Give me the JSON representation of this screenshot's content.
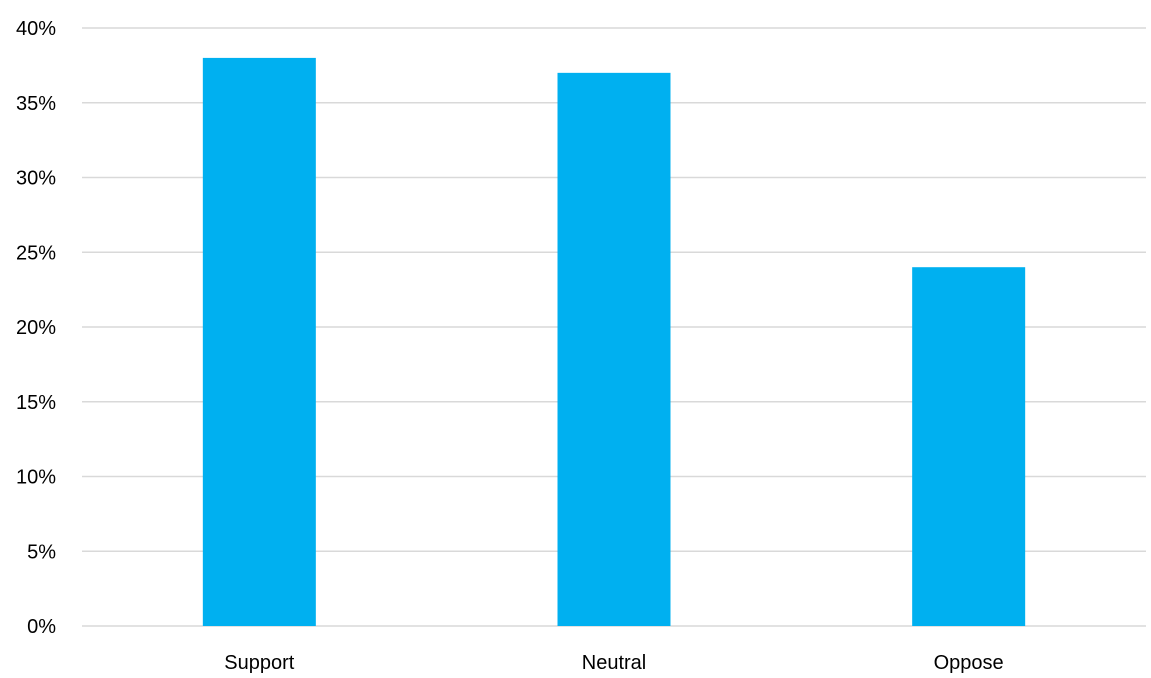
{
  "chart_data": {
    "type": "bar",
    "categories": [
      "Support",
      "Neutral",
      "Oppose"
    ],
    "values": [
      38,
      37,
      24
    ],
    "title": "",
    "xlabel": "",
    "ylabel": "",
    "ylim": [
      0,
      40
    ],
    "yticks": [
      0,
      5,
      10,
      15,
      20,
      25,
      30,
      35,
      40
    ],
    "ytick_format": "%",
    "grid": true,
    "legend": "none",
    "bar_color": "#00b0f0",
    "grid_color": "#d9d9d9"
  }
}
